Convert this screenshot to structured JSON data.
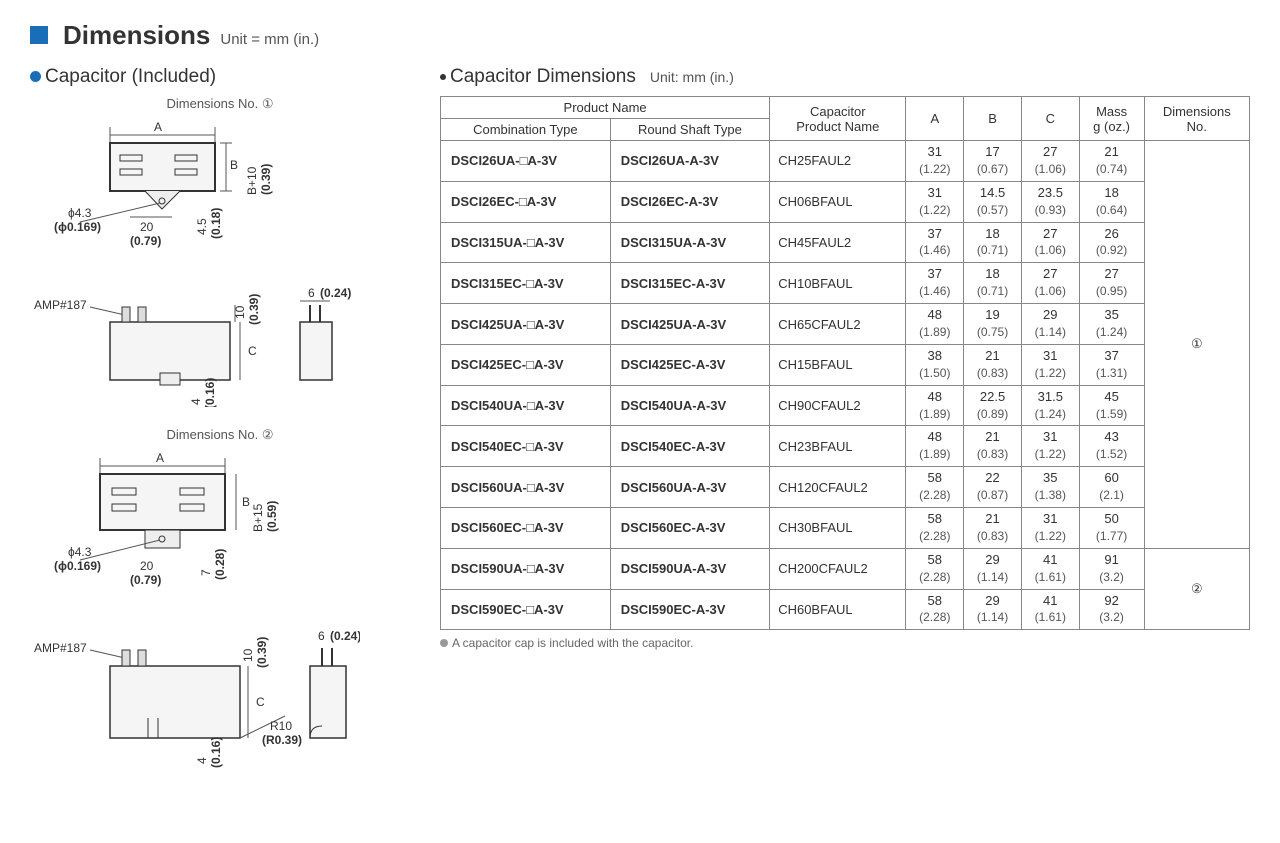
{
  "header": {
    "title": "Dimensions",
    "unit_label": "Unit = mm (in.)"
  },
  "left": {
    "title": "Capacitor (Included)",
    "dim1_label": "Dimensions No. ①",
    "dim2_label": "Dimensions No. ②",
    "diag": {
      "A": "A",
      "B": "B",
      "C": "C",
      "phi43": "ϕ4.3",
      "phi0169": "(ϕ0.169)",
      "d20": "20",
      "d079": "(0.79)",
      "d45": "4.5",
      "d018": "(0.18)",
      "b10": "B+10",
      "b039": "(0.39)",
      "b15": "B+15",
      "b059": "(0.59)",
      "d7": "7",
      "d028": "(0.28)",
      "amp187": "AMP#187",
      "d10": "10",
      "d039": "(0.39)",
      "d6": "6",
      "d024": "(0.24)",
      "d4": "4",
      "d016": "(0.16)",
      "r10": "R10",
      "r039": "(R0.39)"
    }
  },
  "right": {
    "title": "Capacitor Dimensions",
    "unit_label": "Unit: mm (in.)",
    "footnote": "A capacitor cap is included with the capacitor.",
    "headers": {
      "productName": "Product Name",
      "combination": "Combination Type",
      "roundShaft": "Round Shaft Type",
      "capacitorName": "Capacitor\nProduct Name",
      "A": "A",
      "B": "B",
      "C": "C",
      "mass": "Mass\ng (oz.)",
      "dimNo": "Dimensions\nNo."
    },
    "groups": [
      {
        "dim_no": "①",
        "rows": [
          {
            "comb": "DSCI26UA-□A-3V",
            "round": "DSCI26UA-A-3V",
            "cap": "CH25FAUL2",
            "A": "31",
            "Ai": "(1.22)",
            "B": "17",
            "Bi": "(0.67)",
            "C": "27",
            "Ci": "(1.06)",
            "M": "21",
            "Mi": "(0.74)"
          },
          {
            "comb": "DSCI26EC-□A-3V",
            "round": "DSCI26EC-A-3V",
            "cap": "CH06BFAUL",
            "A": "31",
            "Ai": "(1.22)",
            "B": "14.5",
            "Bi": "(0.57)",
            "C": "23.5",
            "Ci": "(0.93)",
            "M": "18",
            "Mi": "(0.64)"
          },
          {
            "comb": "DSCI315UA-□A-3V",
            "round": "DSCI315UA-A-3V",
            "cap": "CH45FAUL2",
            "A": "37",
            "Ai": "(1.46)",
            "B": "18",
            "Bi": "(0.71)",
            "C": "27",
            "Ci": "(1.06)",
            "M": "26",
            "Mi": "(0.92)"
          },
          {
            "comb": "DSCI315EC-□A-3V",
            "round": "DSCI315EC-A-3V",
            "cap": "CH10BFAUL",
            "A": "37",
            "Ai": "(1.46)",
            "B": "18",
            "Bi": "(0.71)",
            "C": "27",
            "Ci": "(1.06)",
            "M": "27",
            "Mi": "(0.95)"
          },
          {
            "comb": "DSCI425UA-□A-3V",
            "round": "DSCI425UA-A-3V",
            "cap": "CH65CFAUL2",
            "A": "48",
            "Ai": "(1.89)",
            "B": "19",
            "Bi": "(0.75)",
            "C": "29",
            "Ci": "(1.14)",
            "M": "35",
            "Mi": "(1.24)"
          },
          {
            "comb": "DSCI425EC-□A-3V",
            "round": "DSCI425EC-A-3V",
            "cap": "CH15BFAUL",
            "A": "38",
            "Ai": "(1.50)",
            "B": "21",
            "Bi": "(0.83)",
            "C": "31",
            "Ci": "(1.22)",
            "M": "37",
            "Mi": "(1.31)"
          },
          {
            "comb": "DSCI540UA-□A-3V",
            "round": "DSCI540UA-A-3V",
            "cap": "CH90CFAUL2",
            "A": "48",
            "Ai": "(1.89)",
            "B": "22.5",
            "Bi": "(0.89)",
            "C": "31.5",
            "Ci": "(1.24)",
            "M": "45",
            "Mi": "(1.59)"
          },
          {
            "comb": "DSCI540EC-□A-3V",
            "round": "DSCI540EC-A-3V",
            "cap": "CH23BFAUL",
            "A": "48",
            "Ai": "(1.89)",
            "B": "21",
            "Bi": "(0.83)",
            "C": "31",
            "Ci": "(1.22)",
            "M": "43",
            "Mi": "(1.52)"
          },
          {
            "comb": "DSCI560UA-□A-3V",
            "round": "DSCI560UA-A-3V",
            "cap": "CH120CFAUL2",
            "A": "58",
            "Ai": "(2.28)",
            "B": "22",
            "Bi": "(0.87)",
            "C": "35",
            "Ci": "(1.38)",
            "M": "60",
            "Mi": "(2.1)"
          },
          {
            "comb": "DSCI560EC-□A-3V",
            "round": "DSCI560EC-A-3V",
            "cap": "CH30BFAUL",
            "A": "58",
            "Ai": "(2.28)",
            "B": "21",
            "Bi": "(0.83)",
            "C": "31",
            "Ci": "(1.22)",
            "M": "50",
            "Mi": "(1.77)"
          }
        ]
      },
      {
        "dim_no": "②",
        "rows": [
          {
            "comb": "DSCI590UA-□A-3V",
            "round": "DSCI590UA-A-3V",
            "cap": "CH200CFAUL2",
            "A": "58",
            "Ai": "(2.28)",
            "B": "29",
            "Bi": "(1.14)",
            "C": "41",
            "Ci": "(1.61)",
            "M": "91",
            "Mi": "(3.2)"
          },
          {
            "comb": "DSCI590EC-□A-3V",
            "round": "DSCI590EC-A-3V",
            "cap": "CH60BFAUL",
            "A": "58",
            "Ai": "(2.28)",
            "B": "29",
            "Bi": "(1.14)",
            "C": "41",
            "Ci": "(1.61)",
            "M": "92",
            "Mi": "(3.2)"
          }
        ]
      }
    ]
  }
}
